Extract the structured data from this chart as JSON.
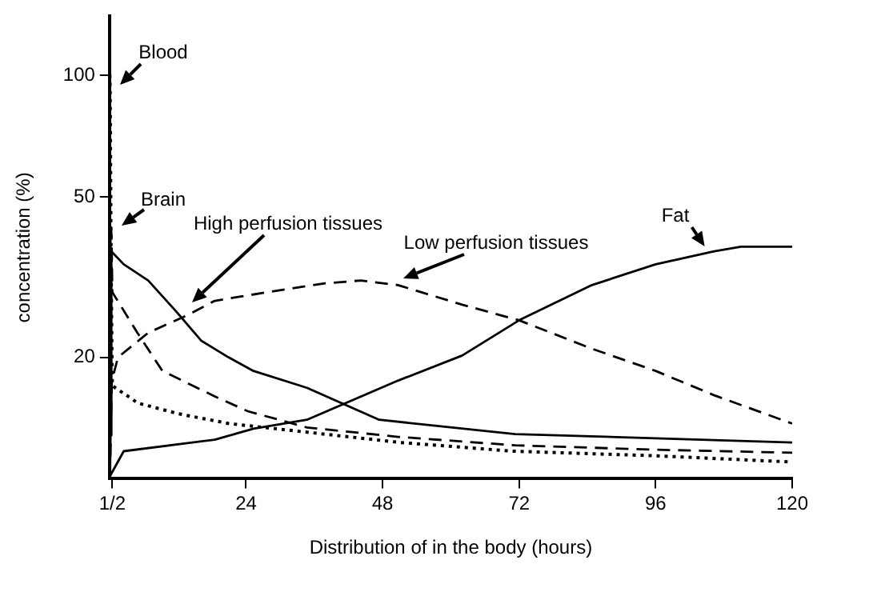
{
  "chart_data": {
    "type": "line",
    "xlabel": "Distribution of in the body (hours)",
    "ylabel": "concentration (%)",
    "xlim": [
      0,
      120
    ],
    "xticks": [
      {
        "value": 0.5,
        "label": "1/2"
      },
      24,
      48,
      72,
      96,
      120
    ],
    "ylim": [
      10,
      140
    ],
    "yticks": [
      20,
      50,
      100
    ],
    "log": "y",
    "grid": false,
    "legend": false,
    "series": [
      {
        "name": "Blood",
        "color": "#000000",
        "line_style": "dotted",
        "x": [
          0,
          0.06,
          0.11,
          0.16,
          0.21,
          0.27,
          0.35,
          0.44,
          0.5,
          5,
          12,
          21,
          51,
          71,
          96,
          120
        ],
        "values": [
          100,
          100,
          93,
          73,
          54,
          37,
          27,
          20,
          17,
          15.4,
          14.5,
          13.7,
          12.3,
          11.7,
          11.4,
          11
        ]
      },
      {
        "name": "Brain",
        "color": "#000000",
        "line_style": "dashed",
        "x": [
          0,
          0.09,
          0.12,
          0.15,
          0.16,
          0.2,
          0.27,
          0.35,
          0.41,
          0.5,
          4.9,
          9.3,
          18.5,
          24.3,
          34.7,
          50.7,
          71.3,
          96,
          120
        ],
        "values": [
          10.1,
          11,
          15,
          27.6,
          36,
          42,
          42,
          40,
          36,
          29,
          23,
          18.5,
          16,
          14.7,
          13.4,
          12.7,
          12.1,
          11.8,
          11.6
        ]
      },
      {
        "name": "High perfusion tissues",
        "color": "#000000",
        "line_style": "solid",
        "x": [
          0,
          0.12,
          0.18,
          0.24,
          0.27,
          0.33,
          0.4,
          0.44,
          2.5,
          6.8,
          11.7,
          16.1,
          20.9,
          25.3,
          34.7,
          47.4,
          71.3,
          96,
          120
        ],
        "values": [
          10.1,
          10.7,
          12.8,
          20,
          27.6,
          34,
          37.3,
          36.6,
          34,
          31,
          26,
          22,
          20,
          18.5,
          16.8,
          14,
          12.9,
          12.6,
          12.3
        ]
      },
      {
        "name": "Low perfusion tissues",
        "color": "#000000",
        "line_style": "dashed",
        "x": [
          0,
          0.16,
          0.27,
          0.41,
          1.5,
          6.8,
          13.6,
          18.5,
          28.4,
          37.9,
          44.2,
          50.7,
          62,
          72,
          84.8,
          96,
          106.3,
          120
        ],
        "values": [
          10.1,
          11.4,
          14,
          17.5,
          20,
          23,
          25.4,
          27.6,
          29.1,
          30.5,
          31,
          30.2,
          27,
          24.7,
          21,
          18.5,
          16.1,
          13.7
        ]
      },
      {
        "name": "Fat",
        "color": "#000000",
        "line_style": "solid",
        "x": [
          0,
          2.5,
          18.5,
          25.3,
          34.7,
          50.7,
          62,
          72,
          84.8,
          96,
          106.3,
          111,
          120
        ],
        "values": [
          10.1,
          11.7,
          12.5,
          13.3,
          14,
          17.5,
          20.2,
          24.7,
          30.2,
          34,
          36.6,
          37.6,
          37.6
        ]
      }
    ]
  }
}
